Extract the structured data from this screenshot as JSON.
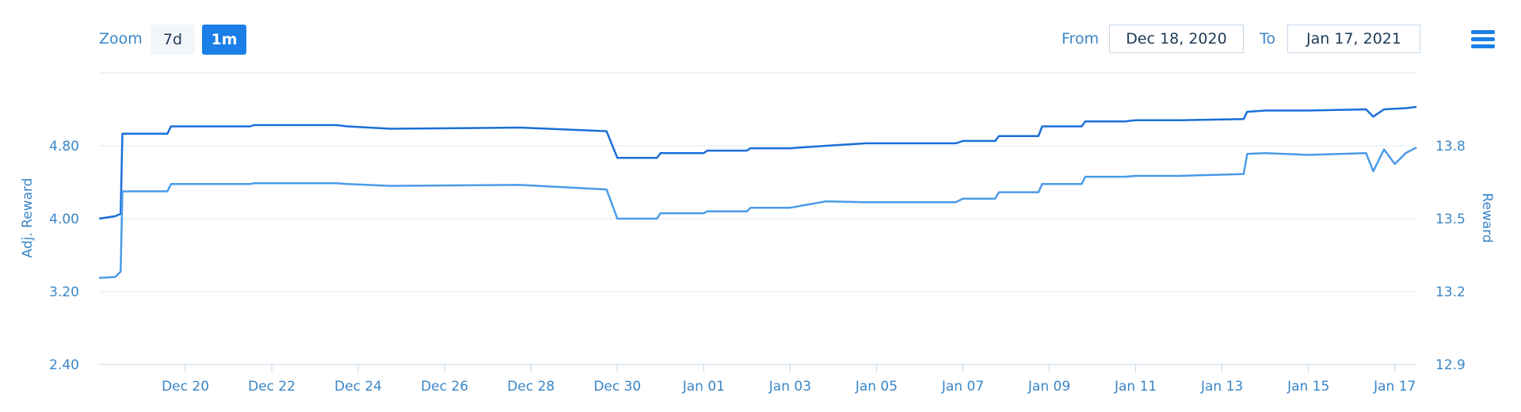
{
  "toolbar": {
    "zoom_label": "Zoom",
    "zoom_options": [
      "7d",
      "1m"
    ],
    "zoom_selected": "1m",
    "from_label": "From",
    "from_value": "Dec 18, 2020",
    "to_label": "To",
    "to_value": "Jan 17, 2021",
    "menu_icon": "hamburger-menu-icon"
  },
  "chart_data": {
    "type": "line",
    "colors": {
      "series_upper": "#1a6fd9",
      "series_lower": "#4b9be8",
      "axis": "#3a86c8",
      "grid": "#e0e8f2"
    },
    "grid": true,
    "yaxis_left": {
      "title": "Adj. Reward",
      "ticks": [
        "2.40",
        "3.20",
        "4.00",
        "4.80"
      ],
      "range": [
        2.4,
        5.6
      ]
    },
    "yaxis_right": {
      "title": "Reward",
      "ticks": [
        "12.9",
        "13.2",
        "13.5",
        "13.8"
      ],
      "range": [
        12.9,
        14.1
      ]
    },
    "xaxis": {
      "range": [
        "2020-12-18T00:00",
        "2021-01-17T12:00"
      ],
      "ticks": [
        {
          "date": "2020-12-20",
          "label": "Dec 20"
        },
        {
          "date": "2020-12-22",
          "label": "Dec 22"
        },
        {
          "date": "2020-12-24",
          "label": "Dec 24"
        },
        {
          "date": "2020-12-26",
          "label": "Dec 26"
        },
        {
          "date": "2020-12-28",
          "label": "Dec 28"
        },
        {
          "date": "2020-12-30",
          "label": "Dec 30"
        },
        {
          "date": "2021-01-01",
          "label": "Jan 01"
        },
        {
          "date": "2021-01-03",
          "label": "Jan 03"
        },
        {
          "date": "2021-01-05",
          "label": "Jan 05"
        },
        {
          "date": "2021-01-07",
          "label": "Jan 07"
        },
        {
          "date": "2021-01-09",
          "label": "Jan 09"
        },
        {
          "date": "2021-01-11",
          "label": "Jan 11"
        },
        {
          "date": "2021-01-13",
          "label": "Jan 13"
        },
        {
          "date": "2021-01-15",
          "label": "Jan 15"
        },
        {
          "date": "2021-01-17",
          "label": "Jan 17"
        }
      ]
    },
    "series": [
      {
        "key": "upper",
        "axis": "right",
        "points": [
          [
            "2020-12-18T00:00",
            13.5
          ],
          [
            "2020-12-18T09:00",
            13.51
          ],
          [
            "2020-12-18T12:00",
            13.52
          ],
          [
            "2020-12-18T13:00",
            13.85
          ],
          [
            "2020-12-19T14:00",
            13.85
          ],
          [
            "2020-12-19T16:00",
            13.88
          ],
          [
            "2020-12-21T12:00",
            13.88
          ],
          [
            "2020-12-21T14:00",
            13.885
          ],
          [
            "2020-12-23T12:00",
            13.885
          ],
          [
            "2020-12-23T18:00",
            13.88
          ],
          [
            "2020-12-24T18:00",
            13.87
          ],
          [
            "2020-12-27T18:00",
            13.875
          ],
          [
            "2020-12-29T18:00",
            13.86
          ],
          [
            "2020-12-30T00:00",
            13.75
          ],
          [
            "2020-12-30T22:00",
            13.75
          ],
          [
            "2020-12-31T00:00",
            13.77
          ],
          [
            "2021-01-01T00:00",
            13.77
          ],
          [
            "2021-01-01T02:00",
            13.78
          ],
          [
            "2021-01-02T00:00",
            13.78
          ],
          [
            "2021-01-02T02:00",
            13.79
          ],
          [
            "2021-01-03T00:00",
            13.79
          ],
          [
            "2021-01-03T20:00",
            13.8
          ],
          [
            "2021-01-04T18:00",
            13.81
          ],
          [
            "2021-01-05T18:00",
            13.81
          ],
          [
            "2021-01-06T20:00",
            13.81
          ],
          [
            "2021-01-07T00:00",
            13.82
          ],
          [
            "2021-01-07T18:00",
            13.82
          ],
          [
            "2021-01-07T20:00",
            13.84
          ],
          [
            "2021-01-08T18:00",
            13.84
          ],
          [
            "2021-01-08T20:00",
            13.88
          ],
          [
            "2021-01-09T18:00",
            13.88
          ],
          [
            "2021-01-09T20:00",
            13.9
          ],
          [
            "2021-01-10T18:00",
            13.9
          ],
          [
            "2021-01-11T00:00",
            13.905
          ],
          [
            "2021-01-12T00:00",
            13.905
          ],
          [
            "2021-01-13T12:00",
            13.91
          ],
          [
            "2021-01-13T14:00",
            13.94
          ],
          [
            "2021-01-14T00:00",
            13.945
          ],
          [
            "2021-01-15T00:00",
            13.945
          ],
          [
            "2021-01-16T08:00",
            13.95
          ],
          [
            "2021-01-16T12:00",
            13.92
          ],
          [
            "2021-01-16T18:00",
            13.95
          ],
          [
            "2021-01-17T06:00",
            13.955
          ],
          [
            "2021-01-17T12:00",
            13.96
          ]
        ]
      },
      {
        "key": "lower",
        "axis": "left",
        "points": [
          [
            "2020-12-18T00:00",
            3.35
          ],
          [
            "2020-12-18T09:00",
            3.36
          ],
          [
            "2020-12-18T12:00",
            3.42
          ],
          [
            "2020-12-18T13:00",
            4.3
          ],
          [
            "2020-12-19T14:00",
            4.3
          ],
          [
            "2020-12-19T16:00",
            4.38
          ],
          [
            "2020-12-21T12:00",
            4.38
          ],
          [
            "2020-12-21T14:00",
            4.39
          ],
          [
            "2020-12-23T12:00",
            4.39
          ],
          [
            "2020-12-23T18:00",
            4.38
          ],
          [
            "2020-12-24T18:00",
            4.36
          ],
          [
            "2020-12-27T18:00",
            4.37
          ],
          [
            "2020-12-29T18:00",
            4.32
          ],
          [
            "2020-12-30T00:00",
            4.0
          ],
          [
            "2020-12-30T22:00",
            4.0
          ],
          [
            "2020-12-31T00:00",
            4.06
          ],
          [
            "2021-01-01T00:00",
            4.06
          ],
          [
            "2021-01-01T02:00",
            4.08
          ],
          [
            "2021-01-02T00:00",
            4.08
          ],
          [
            "2021-01-02T02:00",
            4.12
          ],
          [
            "2021-01-03T00:00",
            4.12
          ],
          [
            "2021-01-03T20:00",
            4.19
          ],
          [
            "2021-01-04T18:00",
            4.18
          ],
          [
            "2021-01-05T18:00",
            4.18
          ],
          [
            "2021-01-06T20:00",
            4.18
          ],
          [
            "2021-01-07T00:00",
            4.22
          ],
          [
            "2021-01-07T18:00",
            4.22
          ],
          [
            "2021-01-07T20:00",
            4.29
          ],
          [
            "2021-01-08T18:00",
            4.29
          ],
          [
            "2021-01-08T20:00",
            4.38
          ],
          [
            "2021-01-09T18:00",
            4.38
          ],
          [
            "2021-01-09T20:00",
            4.46
          ],
          [
            "2021-01-10T18:00",
            4.46
          ],
          [
            "2021-01-11T00:00",
            4.47
          ],
          [
            "2021-01-12T00:00",
            4.47
          ],
          [
            "2021-01-13T12:00",
            4.49
          ],
          [
            "2021-01-13T14:00",
            4.71
          ],
          [
            "2021-01-14T00:00",
            4.72
          ],
          [
            "2021-01-15T00:00",
            4.7
          ],
          [
            "2021-01-16T08:00",
            4.72
          ],
          [
            "2021-01-16T12:00",
            4.52
          ],
          [
            "2021-01-16T18:00",
            4.76
          ],
          [
            "2021-01-17T00:00",
            4.6
          ],
          [
            "2021-01-17T06:00",
            4.72
          ],
          [
            "2021-01-17T12:00",
            4.78
          ]
        ]
      }
    ]
  }
}
